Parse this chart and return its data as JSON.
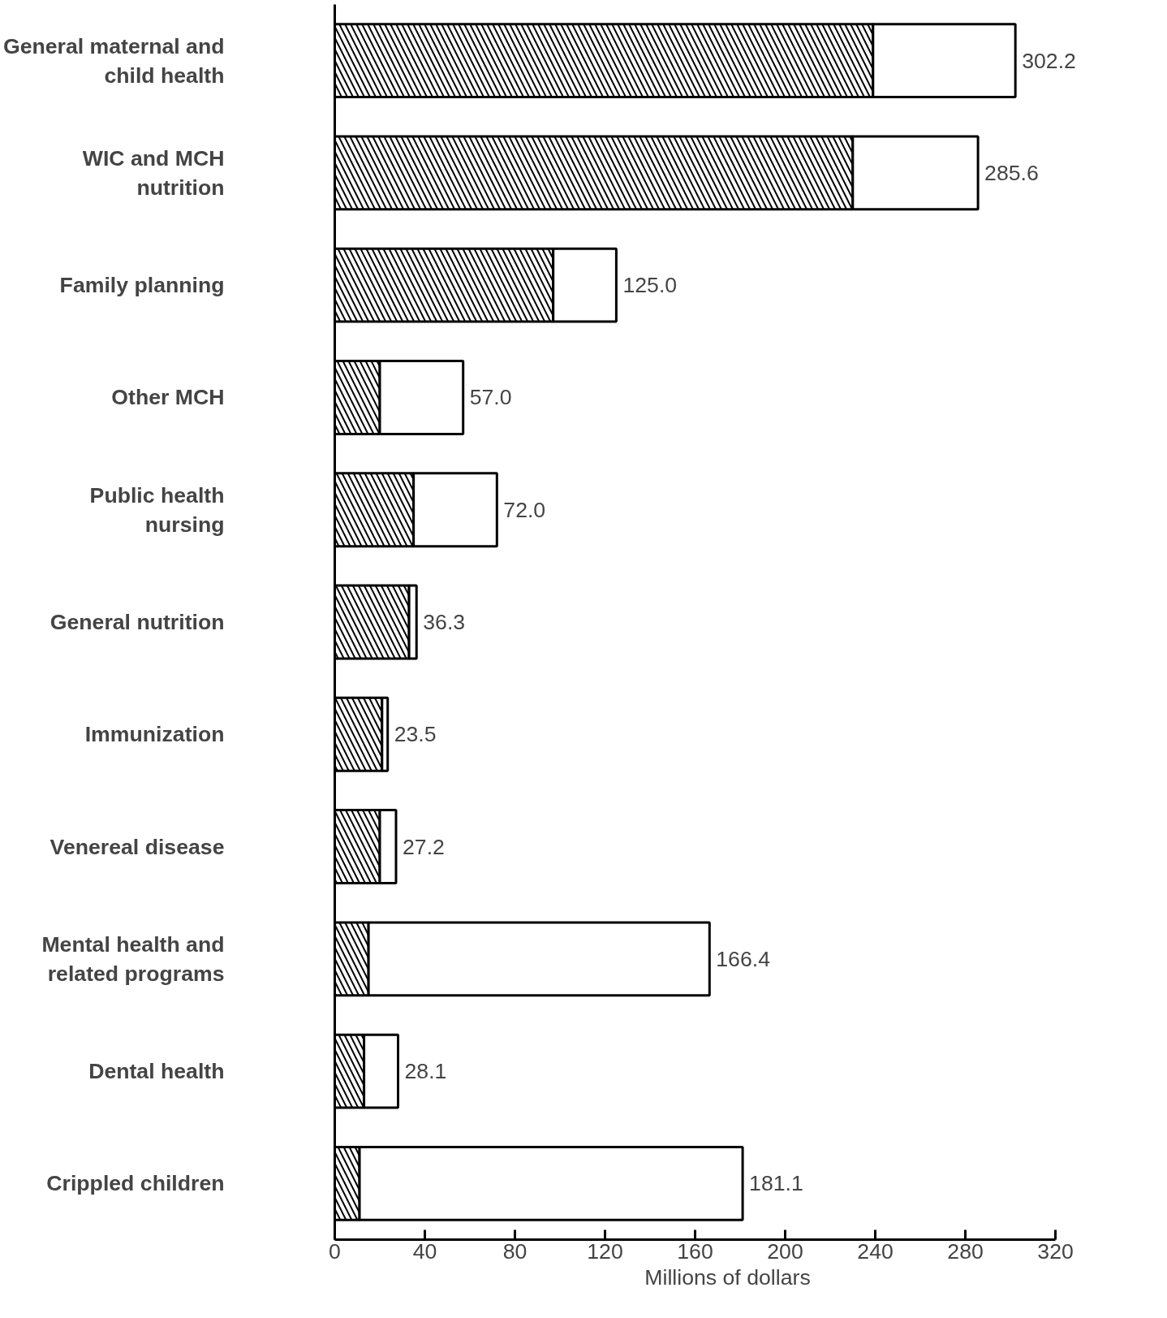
{
  "chart_data": {
    "type": "bar",
    "orientation": "horizontal",
    "stacked": true,
    "xlabel": "Millions of dollars",
    "categories": [
      "General maternal and child health",
      "WIC and MCH nutrition",
      "Family planning",
      "Other MCH",
      "Public health nursing",
      "General nutrition",
      "Immunization",
      "Venereal disease",
      "Mental health and related programs",
      "Dental health",
      "Crippled children"
    ],
    "series": [
      {
        "color": "#000000",
        "values": [
          239,
          230,
          97,
          20,
          35,
          33,
          21,
          20,
          15,
          13,
          11
        ]
      },
      {
        "color": "#ffffff",
        "values": [
          63.2,
          55.6,
          28,
          37,
          37,
          3.3,
          2.5,
          7.2,
          151.4,
          15.1,
          170.1
        ]
      }
    ],
    "totals": [
      "302.2",
      "285.6",
      "125.0",
      "57.0",
      "72.0",
      "36.3",
      "23.5",
      "27.2",
      "166.4",
      "28.1",
      "181.1"
    ],
    "xlim": [
      0,
      320
    ],
    "xticks": [
      0,
      40,
      80,
      120,
      160,
      200,
      240,
      280,
      320
    ],
    "grid": false
  }
}
